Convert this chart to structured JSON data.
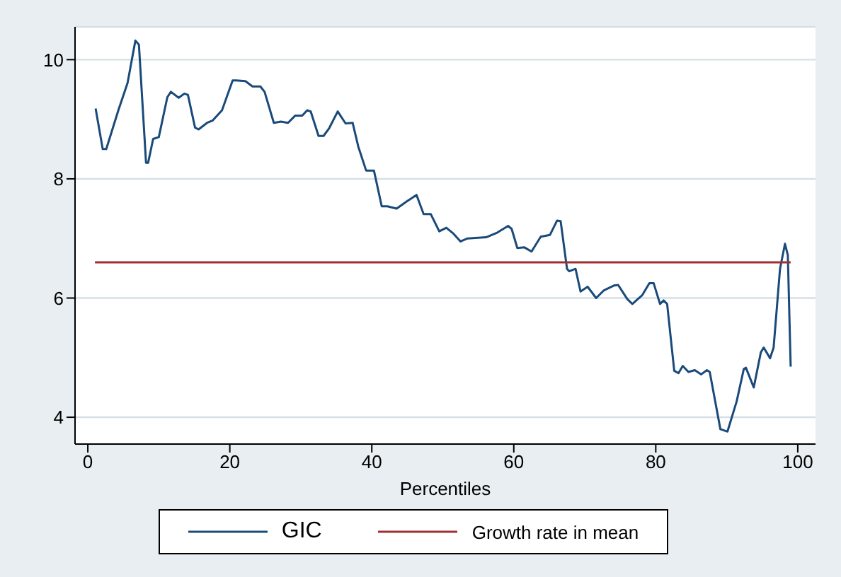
{
  "chart_data": {
    "type": "line",
    "xlabel": "Percentiles",
    "xlim": [
      -1.8,
      102.5
    ],
    "ylim": [
      3.55,
      10.55
    ],
    "xticks": [
      0,
      20,
      40,
      60,
      80,
      100
    ],
    "yticks": [
      4,
      6,
      8,
      10
    ],
    "grid": "y",
    "legend": "bottom",
    "marker": "none",
    "line_style": "solid",
    "series": [
      {
        "name": "GIC",
        "color": "#1a4a7a",
        "x": [
          1.1,
          2.1,
          2.6,
          4.3,
          5.6,
          6.7,
          7.2,
          8.2,
          8.5,
          9.2,
          10.0,
          11.2,
          11.7,
          12.8,
          13.6,
          14.1,
          15.1,
          15.6,
          16.8,
          17.6,
          18.9,
          20.4,
          20.9,
          22.2,
          23.2,
          24.3,
          24.9,
          26.2,
          27.2,
          28.2,
          29.2,
          30.2,
          30.9,
          31.4,
          32.5,
          33.2,
          34.0,
          35.2,
          36.3,
          37.3,
          38.1,
          39.2,
          40.3,
          41.4,
          42.2,
          43.5,
          44.9,
          46.3,
          47.3,
          48.3,
          49.5,
          50.5,
          51.5,
          52.5,
          53.5,
          56.1,
          57.7,
          59.2,
          59.7,
          60.5,
          61.5,
          62.5,
          63.8,
          65.1,
          66.1,
          66.6,
          67.5,
          67.8,
          68.7,
          69.4,
          70.4,
          71.6,
          72.7,
          74.1,
          74.7,
          76.0,
          76.7,
          78.1,
          79.1,
          79.7,
          80.6,
          81.1,
          81.6,
          82.6,
          83.2,
          83.8,
          84.6,
          85.5,
          86.4,
          87.2,
          87.6,
          89.1,
          90.1,
          91.4,
          92.4,
          92.7,
          93.8,
          94.8,
          95.2,
          96.1,
          96.6,
          97.5,
          98.2,
          98.6,
          99
        ],
        "values": [
          9.18,
          8.5,
          8.5,
          9.15,
          9.61,
          10.32,
          10.25,
          8.27,
          8.27,
          8.67,
          8.7,
          9.37,
          9.46,
          9.36,
          9.43,
          9.41,
          8.86,
          8.83,
          8.94,
          8.98,
          9.15,
          9.65,
          9.65,
          9.64,
          9.55,
          9.55,
          9.46,
          8.94,
          8.96,
          8.94,
          9.06,
          9.06,
          9.15,
          9.13,
          8.72,
          8.72,
          8.85,
          9.13,
          8.93,
          8.94,
          8.54,
          8.14,
          8.14,
          7.54,
          7.54,
          7.5,
          7.62,
          7.73,
          7.41,
          7.41,
          7.12,
          7.18,
          7.08,
          6.95,
          7.0,
          7.02,
          7.1,
          7.21,
          7.16,
          6.84,
          6.85,
          6.78,
          7.03,
          7.06,
          7.3,
          7.29,
          6.49,
          6.45,
          6.49,
          6.11,
          6.19,
          6.0,
          6.13,
          6.21,
          6.22,
          5.98,
          5.9,
          6.05,
          6.25,
          6.25,
          5.9,
          5.96,
          5.9,
          4.78,
          4.74,
          4.86,
          4.76,
          4.79,
          4.72,
          4.79,
          4.76,
          3.8,
          3.76,
          4.27,
          4.81,
          4.83,
          4.5,
          5.09,
          5.17,
          4.99,
          5.17,
          6.49,
          6.91,
          6.72,
          4.85
        ]
      },
      {
        "name": "Growth rate in mean",
        "color": "#a03030",
        "x": [
          1,
          99
        ],
        "values": [
          6.6,
          6.6
        ]
      }
    ]
  }
}
